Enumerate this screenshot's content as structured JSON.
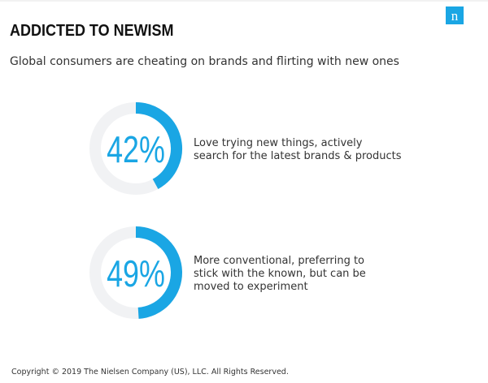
{
  "header": {
    "title": "ADDICTED TO NEWISM",
    "logo": "n",
    "subtitle": "Global consumers are cheating on brands and flirting with new ones"
  },
  "items": [
    {
      "value": 42,
      "value_label": "42%",
      "text_lines": [
        "Love trying new things, actively",
        "search for the latest brands & products"
      ]
    },
    {
      "value": 49,
      "value_label": "49%",
      "text_lines": [
        "More conventional, preferring to",
        "stick with the known, but can be",
        "moved to experiment"
      ]
    }
  ],
  "footer": "Copyright © 2019 The Nielsen Company (US), LLC. All Rights Reserved."
}
